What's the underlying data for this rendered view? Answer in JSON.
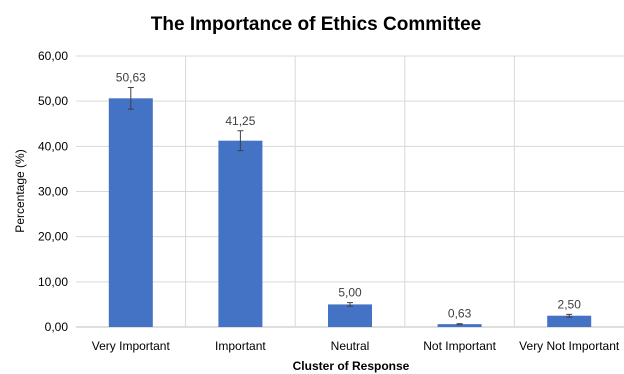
{
  "chart_data": {
    "type": "bar",
    "title": "The Importance of Ethics Committee",
    "xlabel": "Cluster of Response",
    "ylabel": "Percentage (%)",
    "categories": [
      "Very Important",
      "Important",
      "Neutral",
      "Not Important",
      "Very Not Important"
    ],
    "values": [
      50.63,
      41.25,
      5.0,
      0.63,
      2.5
    ],
    "value_labels": [
      "50,63",
      "41,25",
      "5,00",
      "0,63",
      "2,50"
    ],
    "error": [
      2.4,
      2.2,
      0.4,
      0.1,
      0.3
    ],
    "ylim": [
      0,
      60
    ],
    "yticks": [
      0,
      10,
      20,
      30,
      40,
      50,
      60
    ],
    "ytick_labels": [
      "0,00",
      "10,00",
      "20,00",
      "30,00",
      "40,00",
      "50,00",
      "60,00"
    ],
    "grid": true,
    "bar_color": "#4472c4"
  }
}
